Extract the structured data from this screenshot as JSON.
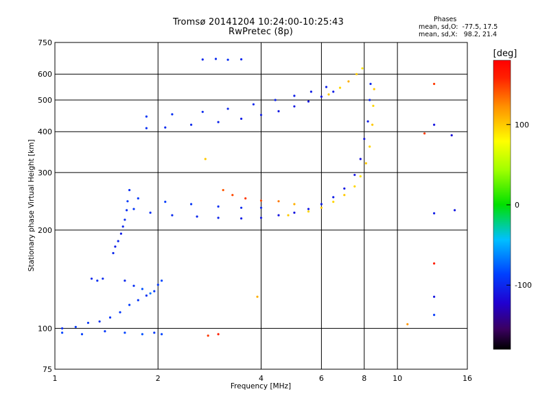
{
  "header": {
    "title_line1": "Tromsø 20141204 10:24:00-10:25:43",
    "title_line2": "RwPretec (8p)",
    "phases_heading": "Phases",
    "phases_o": "mean, sd,O:  -77.5, 17.5",
    "phases_x": "mean, sd,X:   98.2, 21.4"
  },
  "colorbar": {
    "unit": "[deg]",
    "range": [
      -180,
      180
    ],
    "ticks": [
      "100",
      "0",
      "-100"
    ]
  },
  "chart_data": {
    "type": "scatter",
    "title": "Tromsø 20141204 10:24:00-10:25:43",
    "subtitle": "RwPretec (8p)",
    "xlabel": "Frequency [MHz]",
    "ylabel": "Stationary phase Virtual Height [km]",
    "x_scale": "log",
    "y_scale": "log",
    "xlim": [
      1,
      16
    ],
    "ylim": [
      75,
      750
    ],
    "x_ticks": [
      "1",
      "2",
      "4",
      "6",
      "8",
      "10",
      "16"
    ],
    "y_ticks": [
      "75",
      "100",
      "200",
      "300",
      "400",
      "500",
      "600",
      "750"
    ],
    "grid": true,
    "color_variable": "phase [deg]",
    "series": [
      {
        "points": [
          [
            1.05,
            100,
            -95
          ],
          [
            1.15,
            101,
            -90
          ],
          [
            1.25,
            104,
            -92
          ],
          [
            1.35,
            105,
            -95
          ],
          [
            1.45,
            108,
            -92
          ],
          [
            1.55,
            112,
            -90
          ],
          [
            1.65,
            118,
            -88
          ],
          [
            1.75,
            122,
            -92
          ],
          [
            1.85,
            126,
            -95
          ],
          [
            1.95,
            130,
            -90
          ],
          [
            2.05,
            140,
            -85
          ],
          [
            1.6,
            140,
            -100
          ],
          [
            1.7,
            135,
            -95
          ],
          [
            1.8,
            132,
            -80
          ],
          [
            1.9,
            128,
            -70
          ],
          [
            2.0,
            136,
            -90
          ]
        ]
      },
      {
        "points": [
          [
            1.05,
            97,
            -85
          ],
          [
            1.2,
            96,
            -88
          ],
          [
            1.4,
            98,
            -90
          ],
          [
            1.6,
            97,
            -85
          ],
          [
            1.8,
            96,
            -80
          ],
          [
            1.95,
            97,
            -90
          ],
          [
            2.05,
            96,
            -85
          ]
        ]
      },
      {
        "points": [
          [
            1.28,
            142,
            -100
          ],
          [
            1.33,
            140,
            -95
          ],
          [
            1.38,
            142,
            -98
          ]
        ]
      },
      {
        "points": [
          [
            1.48,
            170,
            -100
          ],
          [
            1.5,
            178,
            -105
          ],
          [
            1.53,
            185,
            -100
          ],
          [
            1.56,
            195,
            -105
          ],
          [
            1.58,
            205,
            -100
          ],
          [
            1.6,
            215,
            -98
          ],
          [
            1.62,
            230,
            -95
          ],
          [
            1.63,
            245,
            -90
          ],
          [
            1.65,
            265,
            -95
          ]
        ]
      },
      {
        "points": [
          [
            1.7,
            232,
            -92
          ],
          [
            1.9,
            226,
            -95
          ],
          [
            2.2,
            222,
            -98
          ],
          [
            2.6,
            220,
            -100
          ],
          [
            3.0,
            218,
            -102
          ],
          [
            3.5,
            217,
            -105
          ],
          [
            4.0,
            218,
            -108
          ],
          [
            4.5,
            222,
            -110
          ],
          [
            5.0,
            226,
            -110
          ],
          [
            5.5,
            232,
            -108
          ],
          [
            6.0,
            240,
            -105
          ],
          [
            6.5,
            252,
            -105
          ],
          [
            7.0,
            268,
            -108
          ],
          [
            7.5,
            295,
            -110
          ],
          [
            7.8,
            330,
            -112
          ],
          [
            8.0,
            380,
            -110
          ],
          [
            8.2,
            430,
            -105
          ],
          [
            8.3,
            500,
            -100
          ],
          [
            8.35,
            560,
            -100
          ]
        ]
      },
      {
        "points": [
          [
            1.75,
            250,
            -90
          ],
          [
            2.1,
            244,
            -88
          ],
          [
            2.5,
            240,
            -92
          ],
          [
            3.0,
            236,
            -95
          ],
          [
            3.5,
            234,
            -98
          ],
          [
            4.0,
            234,
            -100
          ]
        ]
      },
      {
        "points": [
          [
            3.1,
            265,
            140
          ],
          [
            3.3,
            256,
            145
          ],
          [
            3.6,
            250,
            150
          ],
          [
            4.0,
            246,
            145
          ],
          [
            4.5,
            245,
            130
          ],
          [
            5.0,
            240,
            110
          ]
        ]
      },
      {
        "points": [
          [
            4.8,
            222,
            100
          ],
          [
            5.5,
            228,
            95
          ],
          [
            6.0,
            234,
            100
          ],
          [
            6.5,
            244,
            95
          ],
          [
            7.0,
            256,
            100
          ],
          [
            7.5,
            272,
            95
          ],
          [
            7.8,
            292,
            90
          ],
          [
            8.1,
            320,
            100
          ],
          [
            8.3,
            360,
            95
          ],
          [
            8.45,
            420,
            100
          ],
          [
            8.5,
            480,
            95
          ],
          [
            8.55,
            540,
            100
          ]
        ]
      },
      {
        "points": [
          [
            1.85,
            410,
            -95
          ],
          [
            2.1,
            412,
            -98
          ],
          [
            2.5,
            420,
            -100
          ],
          [
            3.0,
            428,
            -102
          ],
          [
            3.5,
            438,
            -105
          ],
          [
            4.0,
            450,
            -105
          ],
          [
            4.5,
            462,
            -108
          ],
          [
            5.0,
            478,
            -108
          ],
          [
            5.5,
            495,
            -110
          ],
          [
            6.0,
            512,
            -108
          ],
          [
            6.5,
            530,
            -105
          ]
        ]
      },
      {
        "points": [
          [
            1.85,
            445,
            -92
          ],
          [
            2.2,
            452,
            -95
          ],
          [
            2.7,
            460,
            -98
          ],
          [
            3.2,
            470,
            -100
          ],
          [
            3.8,
            485,
            -100
          ],
          [
            4.4,
            500,
            -102
          ],
          [
            5.0,
            515,
            -104
          ],
          [
            5.6,
            530,
            -105
          ],
          [
            6.2,
            548,
            -103
          ]
        ]
      },
      {
        "points": [
          [
            6.3,
            520,
            100
          ],
          [
            6.8,
            545,
            95
          ],
          [
            7.2,
            570,
            110
          ],
          [
            7.6,
            600,
            100
          ],
          [
            7.9,
            625,
            90
          ]
        ]
      },
      {
        "points": [
          [
            2.7,
            665,
            -100
          ],
          [
            2.95,
            668,
            -98
          ],
          [
            3.2,
            664,
            -95
          ],
          [
            3.5,
            666,
            -100
          ]
        ]
      },
      {
        "points": [
          [
            10.7,
            103,
            120
          ],
          [
            12.8,
            560,
            150
          ],
          [
            12.8,
            420,
            -110
          ],
          [
            12.8,
            225,
            -105
          ],
          [
            12.8,
            158,
            160
          ],
          [
            12.8,
            125,
            -110
          ],
          [
            12.8,
            110,
            -90
          ],
          [
            14.4,
            390,
            -115
          ],
          [
            14.7,
            230,
            -108
          ],
          [
            12.0,
            395,
            150
          ],
          [
            2.75,
            330,
            100
          ],
          [
            2.8,
            95,
            150
          ],
          [
            3.0,
            96,
            160
          ],
          [
            3.9,
            125,
            110
          ]
        ]
      }
    ]
  }
}
